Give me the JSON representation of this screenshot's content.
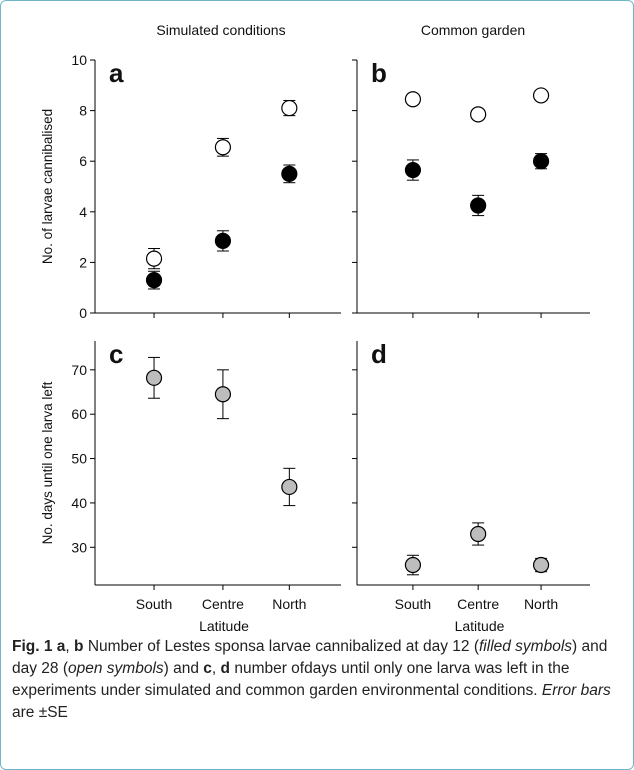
{
  "colors": {
    "frame": "#6fb6c9",
    "filled": "#000000",
    "open": "#ffffff",
    "grey": "#bdbdbd",
    "axis": "#000000"
  },
  "column_titles": [
    "Simulated conditions",
    "Common garden"
  ],
  "caption": {
    "fig_label": "Fig. 1",
    "seg1_bold": "a",
    "seg2": ", ",
    "seg3_bold": "b",
    "seg4": " Number of Lestes sponsa larvae cannibalized at day 12 (",
    "seg5_italic": "filled symbols",
    "seg6": ") and day 28 (",
    "seg7_italic": "open symbols",
    "seg8": ") and ",
    "seg9_bold": "c",
    "seg10": ", ",
    "seg11_bold": "d",
    "seg12": " number ofdays until only one larva was left in the experiments under simulated and common garden environmental conditions. ",
    "seg13_italic": "Error bars",
    "seg14": " are ±SE"
  },
  "chart_data": [
    {
      "panel": "a",
      "type": "scatter",
      "title": "Simulated conditions",
      "xlabel": "",
      "ylabel": "No. of larvae cannibalised",
      "categories": [
        "South",
        "Centre",
        "North"
      ],
      "ylim": [
        0,
        10
      ],
      "yticks": [
        0,
        2,
        4,
        6,
        8,
        10
      ],
      "show_xticklabels": false,
      "series": [
        {
          "marker": "open",
          "values": [
            2.15,
            6.55,
            8.1
          ],
          "se": [
            0.4,
            0.35,
            0.3
          ]
        },
        {
          "marker": "filled",
          "values": [
            1.3,
            2.85,
            5.5
          ],
          "se": [
            0.35,
            0.4,
            0.35
          ]
        }
      ]
    },
    {
      "panel": "b",
      "type": "scatter",
      "title": "Common garden",
      "xlabel": "",
      "ylabel": "",
      "categories": [
        "South",
        "Centre",
        "North"
      ],
      "ylim": [
        0,
        10
      ],
      "yticks": [
        0,
        2,
        4,
        6,
        8,
        10
      ],
      "show_yticklabels": false,
      "show_xticklabels": false,
      "series": [
        {
          "marker": "open",
          "values": [
            8.45,
            7.85,
            8.6
          ],
          "se": [
            0.15,
            0.2,
            0.1
          ]
        },
        {
          "marker": "filled",
          "values": [
            5.65,
            4.25,
            6.0
          ],
          "se": [
            0.4,
            0.4,
            0.3
          ]
        }
      ]
    },
    {
      "panel": "c",
      "type": "scatter",
      "title": "",
      "xlabel": "Latitude",
      "ylabel": "No. days until one larva left",
      "categories": [
        "South",
        "Centre",
        "North"
      ],
      "ylim": [
        21.5,
        76.5
      ],
      "yticks": [
        30,
        40,
        50,
        60,
        70
      ],
      "show_xticklabels": true,
      "series": [
        {
          "marker": "grey",
          "values": [
            68.2,
            64.5,
            43.6
          ],
          "se": [
            4.6,
            5.5,
            4.2
          ]
        }
      ]
    },
    {
      "panel": "d",
      "type": "scatter",
      "title": "",
      "xlabel": "Latitude",
      "ylabel": "",
      "categories": [
        "South",
        "Centre",
        "North"
      ],
      "ylim": [
        21.5,
        76.5
      ],
      "yticks": [
        30,
        40,
        50,
        60,
        70
      ],
      "show_yticklabels": false,
      "show_xticklabels": true,
      "series": [
        {
          "marker": "grey",
          "values": [
            26.0,
            33.0,
            26.0
          ],
          "se": [
            2.2,
            2.5,
            1.5
          ]
        }
      ]
    }
  ]
}
